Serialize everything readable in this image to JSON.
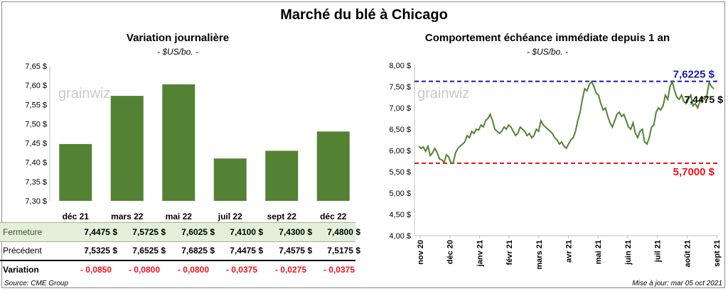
{
  "title": "Marché du blé à Chicago",
  "left": {
    "subtitle": "Variation journalière",
    "unit": "- $US/bo. -",
    "watermark": "grainwiz"
  },
  "right": {
    "subtitle": "Comportement échéance immédiate depuis 1 an",
    "unit": "- $US/bo. -",
    "watermark": "grainwiz"
  },
  "table": {
    "rows": [
      {
        "label": "Fermeture",
        "values": [
          "7,4475  $",
          "7,5725  $",
          "7,6025  $",
          "7,4100  $",
          "7,4300  $",
          "7,4800  $"
        ],
        "style": "close"
      },
      {
        "label": "Précédent",
        "values": [
          "7,5325  $",
          "7,6525  $",
          "7,6825  $",
          "7,4475  $",
          "7,4575  $",
          "7,5175  $"
        ],
        "style": "prev"
      },
      {
        "label": "Variation",
        "values": [
          "- 0,0850",
          "- 0,0800",
          "- 0,0800",
          "- 0,0375",
          "- 0,0275",
          "- 0,0375"
        ],
        "style": "var"
      }
    ]
  },
  "footer": {
    "source": "Source: CME Group",
    "updated": "Mise à jour: mar 05 oct 2021"
  },
  "colors": {
    "bar": "#548235",
    "line": "#548235",
    "high": "#1a1aa8",
    "low": "#e8141c",
    "table_green": "#e2efda",
    "negative": "#e8141c"
  },
  "chart_data": [
    {
      "type": "bar",
      "title": "Variation journalière",
      "categories": [
        "déc 21",
        "mars 22",
        "mai 22",
        "juil 22",
        "sept 22",
        "déc 22"
      ],
      "values": [
        7.4475,
        7.5725,
        7.6025,
        7.41,
        7.43,
        7.48
      ],
      "ylim": [
        7.3,
        7.65
      ],
      "yticks": [
        "7,30 $",
        "7,35 $",
        "7,40 $",
        "7,45 $",
        "7,50 $",
        "7,55 $",
        "7,60 $",
        "7,65 $"
      ],
      "grid": false
    },
    {
      "type": "line",
      "title": "Comportement échéance immédiate depuis 1 an",
      "ylim": [
        4.0,
        8.0
      ],
      "yticks": [
        "4,00 $",
        "4,50 $",
        "5,00 $",
        "5,50 $",
        "6,00 $",
        "6,50 $",
        "7,00 $",
        "7,50 $",
        "8,00 $"
      ],
      "xticks": [
        "nov 20",
        "déc 20",
        "janv 21",
        "févr 21",
        "mars 21",
        "avr 21",
        "mai 21",
        "juin 21",
        "juil 21",
        "août 21",
        "sept 21"
      ],
      "reference_lines": [
        {
          "value": 7.6225,
          "label": "7,6225 $"
        },
        {
          "value": 5.7,
          "label": "5,7000 $"
        }
      ],
      "last_label": "7,4475 $",
      "series": [
        {
          "values": [
            6.1,
            6.05,
            6.08,
            5.98,
            6.1,
            5.88,
            5.95,
            6.05,
            5.95,
            5.8,
            5.78,
            5.72,
            5.9,
            5.85,
            5.7,
            5.72,
            5.95,
            6.05,
            6.1,
            6.15,
            6.2,
            6.35,
            6.3,
            6.45,
            6.4,
            6.5,
            6.48,
            6.6,
            6.55,
            6.7,
            6.75,
            6.85,
            6.7,
            6.5,
            6.45,
            6.4,
            6.45,
            6.55,
            6.5,
            6.6,
            6.55,
            6.45,
            6.35,
            6.4,
            6.55,
            6.5,
            6.45,
            6.35,
            6.4,
            6.3,
            6.35,
            6.5,
            6.45,
            6.7,
            6.6,
            6.55,
            6.5,
            6.45,
            6.4,
            6.3,
            6.25,
            6.15,
            6.2,
            6.1,
            6.05,
            6.15,
            6.25,
            6.3,
            6.45,
            6.7,
            6.9,
            7.2,
            7.45,
            7.4,
            7.55,
            7.62,
            7.5,
            7.35,
            7.3,
            7.1,
            6.95,
            7.0,
            6.8,
            6.65,
            6.55,
            6.7,
            6.85,
            6.9,
            6.8,
            6.85,
            6.7,
            6.55,
            6.5,
            6.65,
            6.4,
            6.3,
            6.45,
            6.5,
            6.2,
            6.15,
            6.3,
            6.55,
            6.6,
            6.9,
            7.0,
            6.95,
            7.05,
            7.3,
            7.2,
            7.5,
            7.62,
            7.4,
            7.25,
            7.2,
            7.3,
            7.15,
            7.1,
            7.2,
            7.3,
            7.05,
            7.1,
            7.0,
            7.15,
            7.25,
            7.2,
            7.3,
            7.6,
            7.5,
            7.45
          ]
        }
      ]
    }
  ]
}
